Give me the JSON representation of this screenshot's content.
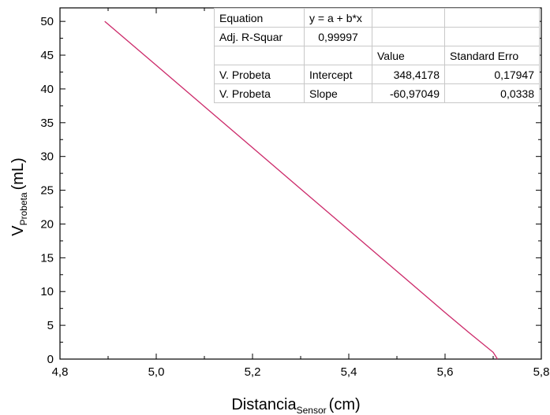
{
  "chart_data": {
    "type": "line",
    "xlabel": "Distancia",
    "xlabel_sub": "Sensor",
    "xlabel_unit": "(cm)",
    "ylabel": "V",
    "ylabel_sub": "Probeta",
    "ylabel_unit": "(mL)",
    "xlim": [
      4.8,
      5.8
    ],
    "ylim": [
      0,
      52
    ],
    "x_ticks": [
      "4,8",
      "5,0",
      "5,2",
      "5,4",
      "5,6",
      "5,8"
    ],
    "x_tick_values": [
      4.8,
      5.0,
      5.2,
      5.4,
      5.6,
      5.8
    ],
    "y_ticks": [
      "0",
      "5",
      "10",
      "15",
      "20",
      "25",
      "30",
      "35",
      "40",
      "45",
      "50"
    ],
    "y_tick_values": [
      0,
      5,
      10,
      15,
      20,
      25,
      30,
      35,
      40,
      45,
      50
    ],
    "series": [
      {
        "color": "#cc2a6a",
        "x": [
          4.893,
          5.0,
          5.1,
          5.2,
          5.3,
          5.4,
          5.5,
          5.6,
          5.65,
          5.7,
          5.709
        ],
        "y": [
          50.0,
          43.5,
          37.4,
          31.3,
          25.2,
          19.1,
          13.0,
          6.9,
          3.9,
          1.0,
          0.0
        ]
      }
    ],
    "grid": false,
    "fit_table": {
      "rows": [
        [
          "Equation",
          "y = a + b*x",
          "",
          ""
        ],
        [
          "Adj. R-Squar",
          "0,99997",
          "",
          ""
        ],
        [
          "",
          "",
          "Value",
          "Standard Erro"
        ],
        [
          "V. Probeta",
          "Intercept",
          "348,4178",
          "0,17947"
        ],
        [
          "V. Probeta",
          "Slope",
          "-60,97049",
          "0,0338"
        ]
      ]
    }
  }
}
